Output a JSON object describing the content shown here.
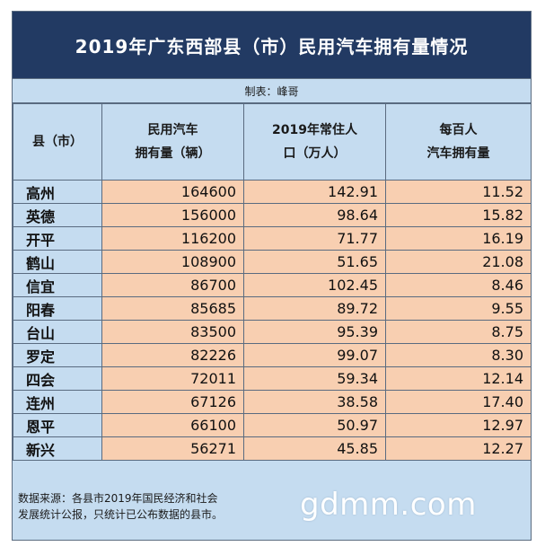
{
  "title": "2019年广东西部县（市）民用汽车拥有量情况",
  "maker": "制表：峰哥",
  "headers": {
    "county_line1": "县（市）",
    "vehicles_line1": "民用汽车",
    "vehicles_line2": "拥有量（辆）",
    "population_line1": "2019年常住人",
    "population_line2": "口（万人）",
    "per100_line1": "每百人",
    "per100_line2": "汽车拥有量"
  },
  "rows": [
    {
      "name": "高州",
      "vehicles": "164600",
      "population": "142.91",
      "per100": "11.52"
    },
    {
      "name": "英德",
      "vehicles": "156000",
      "population": "98.64",
      "per100": "15.82"
    },
    {
      "name": "开平",
      "vehicles": "116200",
      "population": "71.77",
      "per100": "16.19"
    },
    {
      "name": "鹤山",
      "vehicles": "108900",
      "population": "51.65",
      "per100": "21.08"
    },
    {
      "name": "信宜",
      "vehicles": "86700",
      "population": "102.45",
      "per100": "8.46"
    },
    {
      "name": "阳春",
      "vehicles": "85685",
      "population": "89.72",
      "per100": "9.55"
    },
    {
      "name": "台山",
      "vehicles": "83500",
      "population": "95.39",
      "per100": "8.75"
    },
    {
      "name": "罗定",
      "vehicles": "82226",
      "population": "99.07",
      "per100": "8.30"
    },
    {
      "name": "四会",
      "vehicles": "72011",
      "population": "59.34",
      "per100": "12.14"
    },
    {
      "name": "连州",
      "vehicles": "67126",
      "population": "38.58",
      "per100": "17.40"
    },
    {
      "name": "恩平",
      "vehicles": "66100",
      "population": "50.97",
      "per100": "12.97"
    },
    {
      "name": "新兴",
      "vehicles": "56271",
      "population": "45.85",
      "per100": "12.27"
    }
  ],
  "source_line1": "数据来源：各县市2019年国民经济和社会",
  "source_line2": "发展统计公报，只统计已公布数据的县市。",
  "watermark": "gdmm.com",
  "colors": {
    "title_bg": "#223a63",
    "header_bg": "#c5dcf0",
    "cell_bg": "#f8cfb1",
    "border": "#5a6b80"
  }
}
